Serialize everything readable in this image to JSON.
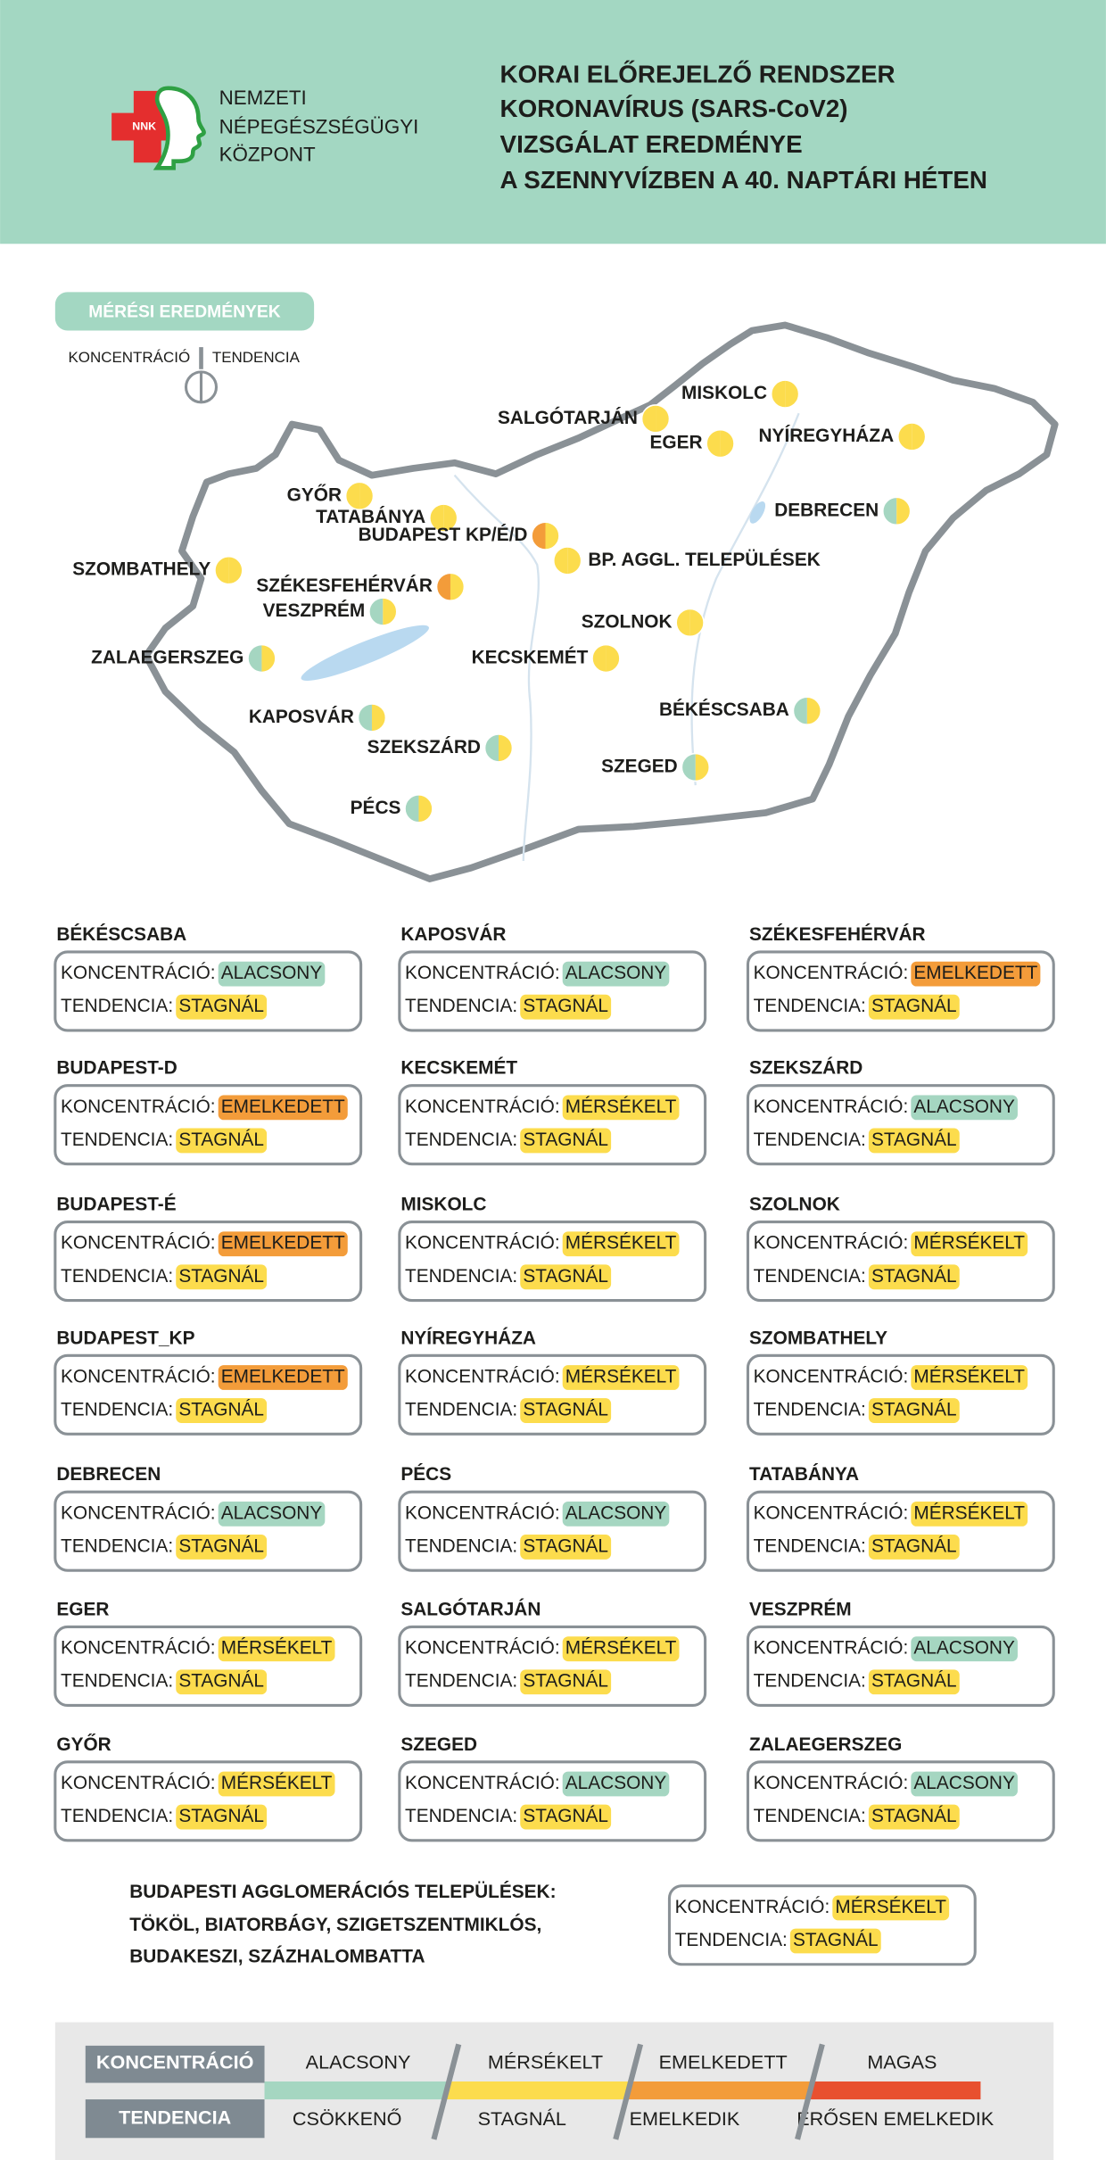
{
  "header": {
    "logo_text": "NNK",
    "org": [
      "NEMZETI",
      "NÉPEGÉSZSÉGÜGYI",
      "KÖZPONT"
    ],
    "title": [
      "KORAI ELŐREJELZŐ RENDSZER",
      "KORONAVÍRUS (SARS-CoV2)",
      "VIZSGÁLAT EREDMÉNYE",
      "A SZENNYVÍZBEN A 40. NAPTÁRI HÉTEN"
    ]
  },
  "map": {
    "badge": "MÉRÉSI EREDMÉNYEK",
    "cities": [
      {
        "label": "MISKOLC",
        "colors": [
          "#fcdc4d",
          "#fcdc4d"
        ]
      },
      {
        "label": "SALGÓTARJÁN",
        "colors": [
          "#fcdc4d",
          "#fcdc4d"
        ]
      },
      {
        "label": "EGER",
        "colors": [
          "#fcdc4d",
          "#fcdc4d"
        ]
      },
      {
        "label": "NYÍREGYHÁZA",
        "colors": [
          "#fcdc4d",
          "#fcdc4d"
        ]
      },
      {
        "label": "GYŐR",
        "colors": [
          "#fcdc4d",
          "#fcdc4d"
        ]
      },
      {
        "label": "TATABÁNYA",
        "colors": [
          "#fcdc4d",
          "#fcdc4d"
        ]
      },
      {
        "label": "BUDAPEST KP/É/D",
        "colors": [
          "#f39c3a",
          "#fcdc4d"
        ]
      },
      {
        "label": "DEBRECEN",
        "colors": [
          "#a5d6c1",
          "#fcdc4d"
        ]
      },
      {
        "label": "BP. AGGL. TELEPÜLÉSEK",
        "colors": [
          "#fcdc4d",
          "#fcdc4d"
        ]
      },
      {
        "label": "SZOMBATHELY",
        "colors": [
          "#fcdc4d",
          "#fcdc4d"
        ]
      },
      {
        "label": "SZÉKESFEHÉRVÁR",
        "colors": [
          "#f39c3a",
          "#fcdc4d"
        ]
      },
      {
        "label": "VESZPRÉM",
        "colors": [
          "#a5d6c1",
          "#fcdc4d"
        ]
      },
      {
        "label": "SZOLNOK",
        "colors": [
          "#fcdc4d",
          "#fcdc4d"
        ]
      },
      {
        "label": "ZALAEGERSZEG",
        "colors": [
          "#a5d6c1",
          "#fcdc4d"
        ]
      },
      {
        "label": "KECSKEMÉT",
        "colors": [
          "#fcdc4d",
          "#fcdc4d"
        ]
      },
      {
        "label": "BÉKÉSCSABA",
        "colors": [
          "#a5d6c1",
          "#fcdc4d"
        ]
      },
      {
        "label": "KAPOSVÁR",
        "colors": [
          "#a5d6c1",
          "#fcdc4d"
        ]
      },
      {
        "label": "SZEKSZÁRD",
        "colors": [
          "#a5d6c1",
          "#fcdc4d"
        ]
      },
      {
        "label": "SZEGED",
        "colors": [
          "#a5d6c1",
          "#fcdc4d"
        ]
      },
      {
        "label": "PÉCS",
        "colors": [
          "#a5d6c1",
          "#fcdc4d"
        ]
      }
    ]
  },
  "card_labels": {
    "concentration": "KONCENTRÁCIÓ:",
    "tendency": "TENDENCIA:"
  },
  "cards": [
    {
      "name": "BÉKÉSCSABA",
      "concentration": "ALACSONY",
      "tendency": "STAGNÁL"
    },
    {
      "name": "BUDAPEST-D",
      "concentration": "EMELKEDETT",
      "tendency": "STAGNÁL"
    },
    {
      "name": "BUDAPEST-É",
      "concentration": "EMELKEDETT",
      "tendency": "STAGNÁL"
    },
    {
      "name": "BUDAPEST_KP",
      "concentration": "EMELKEDETT",
      "tendency": "STAGNÁL"
    },
    {
      "name": "DEBRECEN",
      "concentration": "ALACSONY",
      "tendency": "STAGNÁL"
    },
    {
      "name": "EGER",
      "concentration": "MÉRSÉKELT",
      "tendency": "STAGNÁL"
    },
    {
      "name": "GYŐR",
      "concentration": "MÉRSÉKELT",
      "tendency": "STAGNÁL"
    },
    {
      "name": "KAPOSVÁR",
      "concentration": "ALACSONY",
      "tendency": "STAGNÁL"
    },
    {
      "name": "KECSKEMÉT",
      "concentration": "MÉRSÉKELT",
      "tendency": "STAGNÁL"
    },
    {
      "name": "MISKOLC",
      "concentration": "MÉRSÉKELT",
      "tendency": "STAGNÁL"
    },
    {
      "name": "NYÍREGYHÁZA",
      "concentration": "MÉRSÉKELT",
      "tendency": "STAGNÁL"
    },
    {
      "name": "PÉCS",
      "concentration": "ALACSONY",
      "tendency": "STAGNÁL"
    },
    {
      "name": "SALGÓTARJÁN",
      "concentration": "MÉRSÉKELT",
      "tendency": "STAGNÁL"
    },
    {
      "name": "SZEGED",
      "concentration": "ALACSONY",
      "tendency": "STAGNÁL"
    },
    {
      "name": "SZÉKESFEHÉRVÁR",
      "concentration": "EMELKEDETT",
      "tendency": "STAGNÁL"
    },
    {
      "name": "SZEKSZÁRD",
      "concentration": "ALACSONY",
      "tendency": "STAGNÁL"
    },
    {
      "name": "SZOLNOK",
      "concentration": "MÉRSÉKELT",
      "tendency": "STAGNÁL"
    },
    {
      "name": "SZOMBATHELY",
      "concentration": "MÉRSÉKELT",
      "tendency": "STAGNÁL"
    },
    {
      "name": "TATABÁNYA",
      "concentration": "MÉRSÉKELT",
      "tendency": "STAGNÁL"
    },
    {
      "name": "VESZPRÉM",
      "concentration": "ALACSONY",
      "tendency": "STAGNÁL"
    },
    {
      "name": "ZALAEGERSZEG",
      "concentration": "ALACSONY",
      "tendency": "STAGNÁL"
    }
  ],
  "agglomeration": {
    "lines": [
      "BUDAPESTI AGGLOMERÁCIÓS TELEPÜLÉSEK:",
      "TÖKÖL, BIATORBÁGY, SZIGETSZENTMIKLÓS,",
      "BUDAKESZI, SZÁZHALOMBATTA"
    ],
    "concentration": "MÉRSÉKELT",
    "tendency": "STAGNÁL"
  },
  "legend": {
    "concentration": {
      "title": "KONCENTRÁCIÓ",
      "levels": [
        {
          "label": "ALACSONY",
          "color": "#a5d6c1"
        },
        {
          "label": "MÉRSÉKELT",
          "color": "#fcdc4d"
        },
        {
          "label": "EMELKEDETT",
          "color": "#f39c3a"
        },
        {
          "label": "MAGAS",
          "color": "#e8502f"
        }
      ]
    },
    "tendency": {
      "title": "TENDENCIA",
      "levels": [
        {
          "label": "CSÖKKENŐ",
          "color": "#a5d6c1"
        },
        {
          "label": "STAGNÁL",
          "color": "#fcdc4d"
        },
        {
          "label": "EMELKEDIK",
          "color": "#f39c3a"
        },
        {
          "label": "ERŐSEN EMELKEDIK",
          "color": "#e8502f"
        }
      ]
    }
  }
}
